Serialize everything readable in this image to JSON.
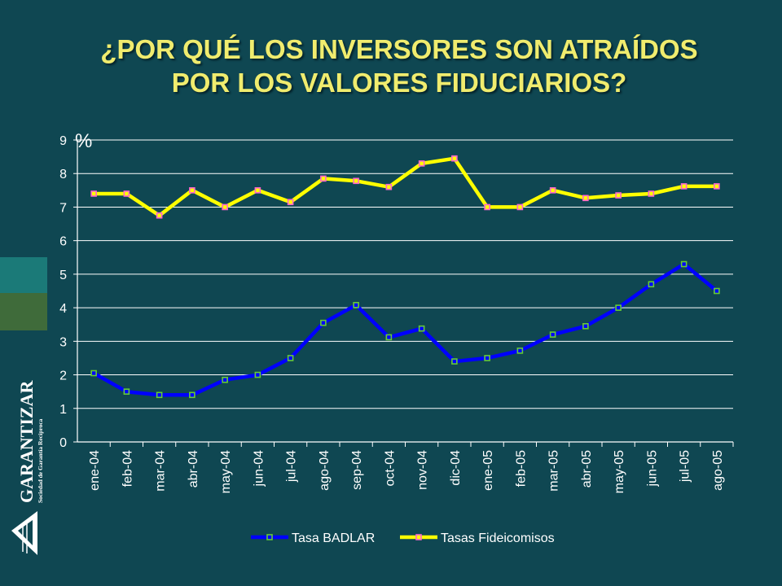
{
  "slide": {
    "title_line1": "¿POR QUÉ LOS INVERSORES SON ATRAÍDOS",
    "title_line2": "POR LOS VALORES FIDUCIARIOS?"
  },
  "logo": {
    "name": "GARANTIZAR",
    "tagline": "Sociedad de Garantía Recíproca"
  },
  "chart_data": {
    "type": "line",
    "title": "",
    "xlabel": "",
    "ylabel": "%",
    "ylim": [
      0,
      9
    ],
    "yticks": [
      0,
      1,
      2,
      3,
      4,
      5,
      6,
      7,
      8,
      9
    ],
    "grid": true,
    "legend_position": "bottom",
    "categories": [
      "ene-04",
      "feb-04",
      "mar-04",
      "abr-04",
      "may-04",
      "jun-04",
      "jul-04",
      "ago-04",
      "sep-04",
      "oct-04",
      "nov-04",
      "dic-04",
      "ene-05",
      "feb-05",
      "mar-05",
      "abr-05",
      "may-05",
      "jun-05",
      "jul-05",
      "ago-05"
    ],
    "series": [
      {
        "name": "Tasa BADLAR",
        "color": "#0000ff",
        "marker_color": "#66cc33",
        "values": [
          2.05,
          1.5,
          1.4,
          1.4,
          1.85,
          2.0,
          2.5,
          3.55,
          4.08,
          3.12,
          3.38,
          2.4,
          2.5,
          2.72,
          3.2,
          3.45,
          4.0,
          4.7,
          5.3,
          4.5
        ]
      },
      {
        "name": "Tasas Fideicomisos",
        "color": "#ffff00",
        "marker_color": "#ff66cc",
        "values": [
          7.4,
          7.4,
          6.75,
          7.5,
          7.0,
          7.5,
          7.15,
          7.85,
          7.78,
          7.6,
          8.3,
          8.45,
          7.0,
          7.0,
          7.5,
          7.27,
          7.35,
          7.4,
          7.62,
          7.62
        ]
      }
    ]
  }
}
